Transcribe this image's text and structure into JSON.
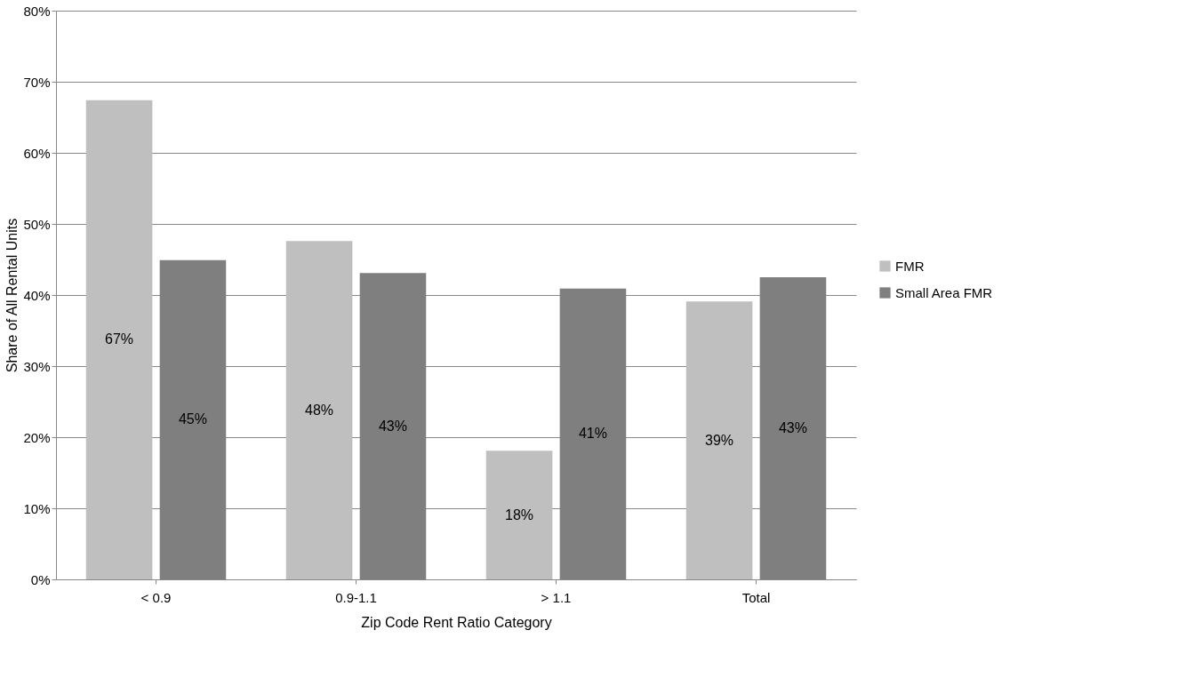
{
  "chart_data": {
    "type": "bar",
    "xlabel": "Zip Code Rent Ratio Category",
    "ylabel": "Share of All Rental Units",
    "categories": [
      "< 0.9",
      "0.9-1.1",
      "> 1.1",
      "Total"
    ],
    "series": [
      {
        "name": "FMR",
        "color": "#bfbfbf",
        "values": [
          67.4,
          47.6,
          18.1,
          39.1
        ],
        "value_labels": [
          "67%",
          "48%",
          "18%",
          "39%"
        ]
      },
      {
        "name": "Small Area FMR",
        "color": "#7f7f7f",
        "values": [
          44.9,
          43.1,
          40.9,
          42.5
        ],
        "value_labels": [
          "45%",
          "43%",
          "41%",
          "43%"
        ]
      }
    ],
    "ylim": [
      0,
      80
    ],
    "yticks": [
      {
        "value": 0,
        "label": "0%"
      },
      {
        "value": 10,
        "label": "10%"
      },
      {
        "value": 20,
        "label": "20%"
      },
      {
        "value": 30,
        "label": "30%"
      },
      {
        "value": 40,
        "label": "40%"
      },
      {
        "value": 50,
        "label": "50%"
      },
      {
        "value": 60,
        "label": "60%"
      },
      {
        "value": 70,
        "label": "70%"
      },
      {
        "value": 80,
        "label": "80%"
      }
    ],
    "grid": "y",
    "legend": "right"
  }
}
